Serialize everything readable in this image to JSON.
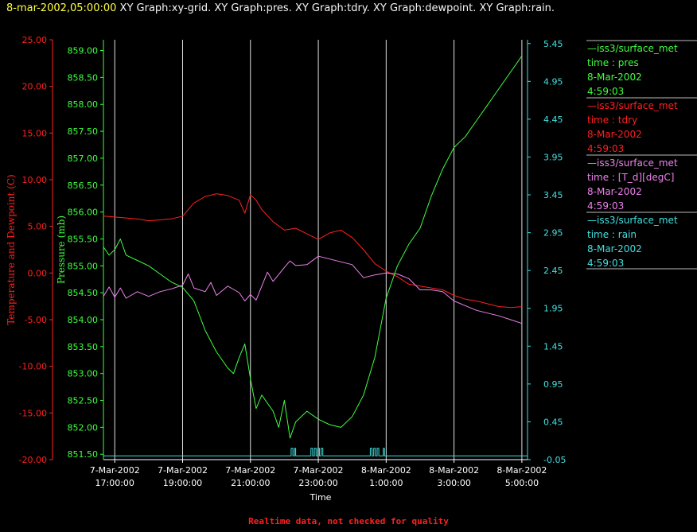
{
  "header": {
    "timestamp": "8-mar-2002,05:00:00",
    "graphs": "XY Graph:xy-grid.  XY Graph:pres.  XY Graph:tdry.  XY Graph:dewpoint.  XY Graph:rain."
  },
  "footer": "Realtime data, not checked for quality",
  "colors": {
    "pres": "#40ff40",
    "tdry": "#ff2020",
    "dewpoint": "#ee82ee",
    "rain": "#40e0e0",
    "grid": "#e0e0e0"
  },
  "legend": [
    {
      "line1": "—iss3/surface_met",
      "line2": "time : pres",
      "line3": "8-Mar-2002",
      "line4": "4:59:03",
      "color": "#40ff40"
    },
    {
      "line1": "—iss3/surface_met",
      "line2": "time : tdry",
      "line3": "8-Mar-2002",
      "line4": "4:59:03",
      "color": "#ff2020"
    },
    {
      "line1": "—iss3/surface_met",
      "line2": "time : [T_d][degC]",
      "line3": "8-Mar-2002",
      "line4": "4:59:03",
      "color": "#ee82ee"
    },
    {
      "line1": "—iss3/surface_met",
      "line2": "time : rain",
      "line3": "8-Mar-2002",
      "line4": "4:59:03",
      "color": "#40e0e0"
    }
  ],
  "chart_data": {
    "type": "line",
    "xlabel": "Time",
    "x_range": [
      "7-Mar-2002 16:40",
      "8-Mar-2002 05:10"
    ],
    "x_ticks": [
      {
        "t": "7-Mar-2002 17:00",
        "line1": "7-Mar-2002",
        "line2": "17:00:00"
      },
      {
        "t": "7-Mar-2002 19:00",
        "line1": "7-Mar-2002",
        "line2": "19:00:00"
      },
      {
        "t": "7-Mar-2002 21:00",
        "line1": "7-Mar-2002",
        "line2": "21:00:00"
      },
      {
        "t": "7-Mar-2002 23:00",
        "line1": "7-Mar-2002",
        "line2": "23:00:00"
      },
      {
        "t": "8-Mar-2002 01:00",
        "line1": "8-Mar-2002",
        "line2": "1:00:00"
      },
      {
        "t": "8-Mar-2002 03:00",
        "line1": "8-Mar-2002",
        "line2": "3:00:00"
      },
      {
        "t": "8-Mar-2002 05:00",
        "line1": "8-Mar-2002",
        "line2": "5:00:00"
      }
    ],
    "vertical_grid": true,
    "axes": {
      "temp": {
        "label": "Temperature and Dewpoint (C)",
        "range": [
          -20,
          25
        ],
        "step": 5,
        "decimals": 2
      },
      "pres": {
        "label": "Pressure (mb)",
        "range": [
          851.4,
          859.2
        ],
        "step": 0.5,
        "tick_start": 851.5,
        "tick_end": 859.0,
        "decimals": 2
      },
      "rain": {
        "label": "",
        "range": [
          -0.05,
          5.5
        ],
        "step": 0.5,
        "decimals": 2
      }
    },
    "series": [
      {
        "key": "pres",
        "axis": "pres",
        "points": [
          [
            "7-Mar-2002 16:40",
            855.35
          ],
          [
            "7-Mar-2002 16:50",
            855.2
          ],
          [
            "7-Mar-2002 17:00",
            855.3
          ],
          [
            "7-Mar-2002 17:10",
            855.5
          ],
          [
            "7-Mar-2002 17:20",
            855.2
          ],
          [
            "7-Mar-2002 17:40",
            855.1
          ],
          [
            "7-Mar-2002 18:00",
            855.0
          ],
          [
            "7-Mar-2002 18:20",
            854.85
          ],
          [
            "7-Mar-2002 18:40",
            854.7
          ],
          [
            "7-Mar-2002 19:00",
            854.6
          ],
          [
            "7-Mar-2002 19:20",
            854.35
          ],
          [
            "7-Mar-2002 19:40",
            853.8
          ],
          [
            "7-Mar-2002 20:00",
            853.4
          ],
          [
            "7-Mar-2002 20:20",
            853.1
          ],
          [
            "7-Mar-2002 20:30",
            853.0
          ],
          [
            "7-Mar-2002 20:40",
            853.3
          ],
          [
            "7-Mar-2002 20:50",
            853.55
          ],
          [
            "7-Mar-2002 21:00",
            852.9
          ],
          [
            "7-Mar-2002 21:10",
            852.35
          ],
          [
            "7-Mar-2002 21:20",
            852.6
          ],
          [
            "7-Mar-2002 21:40",
            852.3
          ],
          [
            "7-Mar-2002 21:50",
            852.0
          ],
          [
            "7-Mar-2002 22:00",
            852.5
          ],
          [
            "7-Mar-2002 22:10",
            851.8
          ],
          [
            "7-Mar-2002 22:20",
            852.1
          ],
          [
            "7-Mar-2002 22:40",
            852.3
          ],
          [
            "7-Mar-2002 23:00",
            852.15
          ],
          [
            "7-Mar-2002 23:20",
            852.05
          ],
          [
            "7-Mar-2002 23:40",
            852.0
          ],
          [
            "8-Mar-2002 00:00",
            852.2
          ],
          [
            "8-Mar-2002 00:20",
            852.6
          ],
          [
            "8-Mar-2002 00:40",
            853.3
          ],
          [
            "8-Mar-2002 01:00",
            854.4
          ],
          [
            "8-Mar-2002 01:20",
            855.0
          ],
          [
            "8-Mar-2002 01:40",
            855.4
          ],
          [
            "8-Mar-2002 02:00",
            855.7
          ],
          [
            "8-Mar-2002 02:20",
            856.3
          ],
          [
            "8-Mar-2002 02:40",
            856.8
          ],
          [
            "8-Mar-2002 03:00",
            857.2
          ],
          [
            "8-Mar-2002 03:20",
            857.4
          ],
          [
            "8-Mar-2002 03:40",
            857.7
          ],
          [
            "8-Mar-2002 04:00",
            858.0
          ],
          [
            "8-Mar-2002 04:20",
            858.3
          ],
          [
            "8-Mar-2002 04:40",
            858.6
          ],
          [
            "8-Mar-2002 05:00",
            858.9
          ]
        ]
      },
      {
        "key": "tdry",
        "axis": "temp",
        "points": [
          [
            "7-Mar-2002 16:40",
            6.1
          ],
          [
            "7-Mar-2002 17:00",
            6.0
          ],
          [
            "7-Mar-2002 17:20",
            5.9
          ],
          [
            "7-Mar-2002 17:40",
            5.8
          ],
          [
            "7-Mar-2002 18:00",
            5.6
          ],
          [
            "7-Mar-2002 18:20",
            5.7
          ],
          [
            "7-Mar-2002 18:40",
            5.8
          ],
          [
            "7-Mar-2002 19:00",
            6.1
          ],
          [
            "7-Mar-2002 19:20",
            7.5
          ],
          [
            "7-Mar-2002 19:40",
            8.2
          ],
          [
            "7-Mar-2002 20:00",
            8.5
          ],
          [
            "7-Mar-2002 20:20",
            8.3
          ],
          [
            "7-Mar-2002 20:40",
            7.8
          ],
          [
            "7-Mar-2002 20:50",
            6.4
          ],
          [
            "7-Mar-2002 21:00",
            8.4
          ],
          [
            "7-Mar-2002 21:10",
            7.8
          ],
          [
            "7-Mar-2002 21:20",
            6.8
          ],
          [
            "7-Mar-2002 21:40",
            5.5
          ],
          [
            "7-Mar-2002 22:00",
            4.6
          ],
          [
            "7-Mar-2002 22:20",
            4.8
          ],
          [
            "7-Mar-2002 22:40",
            4.2
          ],
          [
            "7-Mar-2002 23:00",
            3.6
          ],
          [
            "7-Mar-2002 23:20",
            4.3
          ],
          [
            "7-Mar-2002 23:40",
            4.6
          ],
          [
            "8-Mar-2002 00:00",
            3.8
          ],
          [
            "8-Mar-2002 00:20",
            2.5
          ],
          [
            "8-Mar-2002 00:40",
            1.0
          ],
          [
            "8-Mar-2002 01:00",
            0.2
          ],
          [
            "8-Mar-2002 01:20",
            -0.4
          ],
          [
            "8-Mar-2002 01:40",
            -1.2
          ],
          [
            "8-Mar-2002 02:00",
            -1.4
          ],
          [
            "8-Mar-2002 02:20",
            -1.6
          ],
          [
            "8-Mar-2002 02:40",
            -1.8
          ],
          [
            "8-Mar-2002 03:00",
            -2.4
          ],
          [
            "8-Mar-2002 03:20",
            -2.8
          ],
          [
            "8-Mar-2002 03:40",
            -3.0
          ],
          [
            "8-Mar-2002 04:00",
            -3.3
          ],
          [
            "8-Mar-2002 04:20",
            -3.6
          ],
          [
            "8-Mar-2002 04:40",
            -3.7
          ],
          [
            "8-Mar-2002 05:00",
            -3.6
          ]
        ]
      },
      {
        "key": "dewpoint",
        "axis": "temp",
        "points": [
          [
            "7-Mar-2002 16:40",
            -2.5
          ],
          [
            "7-Mar-2002 16:50",
            -1.5
          ],
          [
            "7-Mar-2002 17:00",
            -2.6
          ],
          [
            "7-Mar-2002 17:10",
            -1.6
          ],
          [
            "7-Mar-2002 17:20",
            -2.7
          ],
          [
            "7-Mar-2002 17:40",
            -2.0
          ],
          [
            "7-Mar-2002 18:00",
            -2.5
          ],
          [
            "7-Mar-2002 18:20",
            -2.0
          ],
          [
            "7-Mar-2002 18:40",
            -1.7
          ],
          [
            "7-Mar-2002 19:00",
            -1.3
          ],
          [
            "7-Mar-2002 19:10",
            -0.1
          ],
          [
            "7-Mar-2002 19:20",
            -1.6
          ],
          [
            "7-Mar-2002 19:40",
            -2.0
          ],
          [
            "7-Mar-2002 19:50",
            -1.0
          ],
          [
            "7-Mar-2002 20:00",
            -2.4
          ],
          [
            "7-Mar-2002 20:20",
            -1.4
          ],
          [
            "7-Mar-2002 20:40",
            -2.1
          ],
          [
            "7-Mar-2002 20:50",
            -3.0
          ],
          [
            "7-Mar-2002 21:00",
            -2.3
          ],
          [
            "7-Mar-2002 21:10",
            -2.9
          ],
          [
            "7-Mar-2002 21:20",
            -1.4
          ],
          [
            "7-Mar-2002 21:30",
            0.1
          ],
          [
            "7-Mar-2002 21:40",
            -0.9
          ],
          [
            "7-Mar-2002 22:00",
            0.6
          ],
          [
            "7-Mar-2002 22:10",
            1.3
          ],
          [
            "7-Mar-2002 22:20",
            0.8
          ],
          [
            "7-Mar-2002 22:40",
            0.9
          ],
          [
            "7-Mar-2002 23:00",
            1.8
          ],
          [
            "7-Mar-2002 23:20",
            1.5
          ],
          [
            "7-Mar-2002 23:40",
            1.2
          ],
          [
            "8-Mar-2002 00:00",
            0.9
          ],
          [
            "8-Mar-2002 00:20",
            -0.5
          ],
          [
            "8-Mar-2002 00:40",
            -0.2
          ],
          [
            "8-Mar-2002 01:00",
            0.0
          ],
          [
            "8-Mar-2002 01:20",
            -0.1
          ],
          [
            "8-Mar-2002 01:40",
            -0.6
          ],
          [
            "8-Mar-2002 02:00",
            -1.8
          ],
          [
            "8-Mar-2002 02:20",
            -1.8
          ],
          [
            "8-Mar-2002 02:40",
            -2.0
          ],
          [
            "8-Mar-2002 03:00",
            -3.0
          ],
          [
            "8-Mar-2002 03:20",
            -3.5
          ],
          [
            "8-Mar-2002 03:40",
            -4.0
          ],
          [
            "8-Mar-2002 04:00",
            -4.3
          ],
          [
            "8-Mar-2002 04:20",
            -4.6
          ],
          [
            "8-Mar-2002 04:40",
            -5.0
          ],
          [
            "8-Mar-2002 05:00",
            -5.4
          ]
        ]
      },
      {
        "key": "rain",
        "axis": "rain",
        "points": [
          [
            "7-Mar-2002 16:40",
            0.0
          ],
          [
            "7-Mar-2002 22:10",
            0.0
          ],
          [
            "7-Mar-2002 22:12",
            0.1
          ],
          [
            "7-Mar-2002 22:15",
            0.0
          ],
          [
            "7-Mar-2002 22:18",
            0.1
          ],
          [
            "7-Mar-2002 22:20",
            0.0
          ],
          [
            "7-Mar-2002 22:45",
            0.0
          ],
          [
            "7-Mar-2002 22:47",
            0.1
          ],
          [
            "7-Mar-2002 22:50",
            0.0
          ],
          [
            "7-Mar-2002 22:53",
            0.1
          ],
          [
            "7-Mar-2002 22:56",
            0.0
          ],
          [
            "7-Mar-2002 22:59",
            0.1
          ],
          [
            "7-Mar-2002 23:02",
            0.0
          ],
          [
            "7-Mar-2002 23:05",
            0.1
          ],
          [
            "7-Mar-2002 23:08",
            0.0
          ],
          [
            "7-Mar-2002 23:40",
            0.0
          ],
          [
            "8-Mar-2002 00:30",
            0.0
          ],
          [
            "8-Mar-2002 00:32",
            0.1
          ],
          [
            "8-Mar-2002 00:35",
            0.0
          ],
          [
            "8-Mar-2002 00:38",
            0.1
          ],
          [
            "8-Mar-2002 00:41",
            0.0
          ],
          [
            "8-Mar-2002 00:44",
            0.1
          ],
          [
            "8-Mar-2002 00:47",
            0.0
          ],
          [
            "8-Mar-2002 00:55",
            0.1
          ],
          [
            "8-Mar-2002 00:57",
            0.0
          ],
          [
            "8-Mar-2002 05:10",
            0.0
          ]
        ]
      }
    ]
  }
}
